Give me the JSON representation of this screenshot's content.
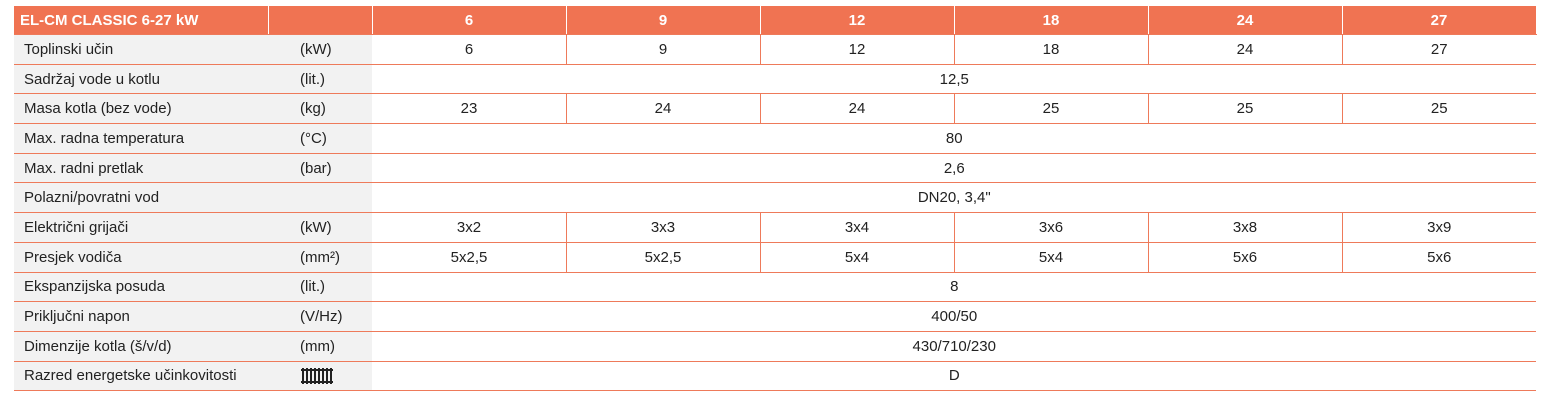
{
  "table": {
    "header": {
      "title": "EL-CM CLASSIC 6-27 kW",
      "columns": [
        6,
        9,
        12,
        18,
        24,
        27
      ]
    },
    "rows": [
      {
        "label": "Toplinski učin",
        "unit": "(kW)",
        "values": [
          6,
          9,
          12,
          18,
          24,
          27
        ]
      },
      {
        "label": "Sadržaj vode u kotlu",
        "unit": "(lit.)",
        "values": [
          "12,5"
        ]
      },
      {
        "label": "Masa kotla (bez vode)",
        "unit": "(kg)",
        "values": [
          23,
          24,
          24,
          25,
          25,
          25
        ]
      },
      {
        "label": "Max. radna temperatura",
        "unit": "(°C)",
        "values": [
          80
        ]
      },
      {
        "label": "Max. radni pretlak",
        "unit": "(bar)",
        "values": [
          "2,6"
        ]
      },
      {
        "label": "Polazni/povratni vod",
        "values": [
          "DN20, 3,4\""
        ]
      },
      {
        "label": "Električni grijači",
        "unit": "(kW)",
        "values": [
          "3x2",
          "3x3",
          "3x4",
          "3x6",
          "3x8",
          "3x9"
        ]
      },
      {
        "label": "Presjek vodiča",
        "unit": "(mm²)",
        "values": [
          "5x2,5",
          "5x2,5",
          "5x4",
          "5x4",
          "5x6",
          "5x6"
        ]
      },
      {
        "label": "Ekspanzijska posuda",
        "unit": "(lit.)",
        "values": [
          8
        ]
      },
      {
        "label": "Priključni napon",
        "unit": "(V/Hz)",
        "values": [
          "400/50"
        ]
      },
      {
        "label": "Dimenzije kotla (š/v/d)",
        "unit": "(mm)",
        "values": [
          "430/710/230"
        ]
      },
      {
        "label": "Razred energetske učinkovitosti",
        "values": [
          "D"
        ]
      }
    ]
  }
}
